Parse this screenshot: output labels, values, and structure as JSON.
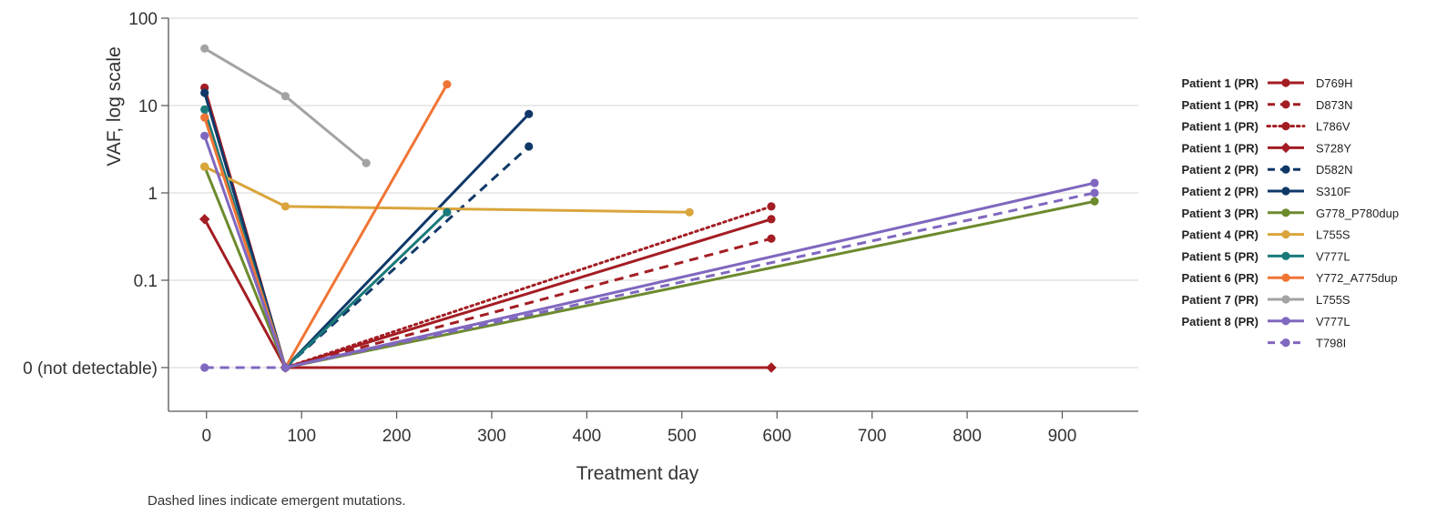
{
  "chart_data": {
    "type": "line",
    "xlabel": "Treatment day",
    "ylabel": "VAF, log scale",
    "xlim": [
      -40,
      980
    ],
    "x_ticks": [
      0,
      100,
      200,
      300,
      400,
      500,
      600,
      700,
      800,
      900
    ],
    "y_scale": "log",
    "y_ticks": [
      {
        "value": 100,
        "label": "100"
      },
      {
        "value": 10,
        "label": "10"
      },
      {
        "value": 1,
        "label": "1"
      },
      {
        "value": 0.1,
        "label": "0.1"
      },
      {
        "value": 0,
        "label": "0 (not detectable)"
      }
    ],
    "grid": "horizontal",
    "legend_position": "right",
    "series": [
      {
        "patient": "Patient 1 (PR)",
        "name": "D769H",
        "color": "#a31d23",
        "dash": "solid",
        "marker": "circle",
        "points": [
          [
            -2,
            16
          ],
          [
            83,
            0
          ],
          [
            594,
            0.5
          ]
        ]
      },
      {
        "patient": "Patient 1 (PR)",
        "name": "D873N",
        "color": "#a31d23",
        "dash": "dashed",
        "marker": "circle",
        "points": [
          [
            83,
            0
          ],
          [
            594,
            0.3
          ]
        ]
      },
      {
        "patient": "Patient 1 (PR)",
        "name": "L786V",
        "color": "#a31d23",
        "dash": "dotted",
        "marker": "circle",
        "points": [
          [
            83,
            0
          ],
          [
            594,
            0.7
          ]
        ]
      },
      {
        "patient": "Patient 1 (PR)",
        "name": "S728Y",
        "color": "#a31d23",
        "dash": "solid",
        "marker": "diamond",
        "points": [
          [
            -2,
            0.5
          ],
          [
            83,
            0
          ],
          [
            594,
            0
          ]
        ]
      },
      {
        "patient": "Patient 2 (PR)",
        "name": "D582N",
        "color": "#0f3868",
        "dash": "dashed",
        "marker": "circle",
        "points": [
          [
            83,
            0
          ],
          [
            339,
            3.4
          ]
        ]
      },
      {
        "patient": "Patient 2 (PR)",
        "name": "S310F",
        "color": "#0f3868",
        "dash": "solid",
        "marker": "circle",
        "points": [
          [
            -2,
            14
          ],
          [
            83,
            0
          ],
          [
            339,
            8
          ]
        ]
      },
      {
        "patient": "Patient 3 (PR)",
        "name": "G778_P780dup",
        "color": "#6c8a2e",
        "dash": "solid",
        "marker": "circle",
        "points": [
          [
            -2,
            2
          ],
          [
            83,
            0
          ],
          [
            934,
            0.8
          ]
        ]
      },
      {
        "patient": "Patient 4 (PR)",
        "name": "L755S",
        "color": "#d9a53c",
        "dash": "solid",
        "marker": "circle",
        "points": [
          [
            -2,
            2
          ],
          [
            83,
            0.7
          ],
          [
            508,
            0.6
          ]
        ]
      },
      {
        "patient": "Patient 5 (PR)",
        "name": "V777L",
        "color": "#1a7a7a",
        "dash": "solid",
        "marker": "circle",
        "points": [
          [
            -2,
            9
          ],
          [
            83,
            0
          ],
          [
            253,
            0.6
          ]
        ]
      },
      {
        "patient": "Patient 6 (PR)",
        "name": "Y772_A775dup",
        "color": "#f07535",
        "dash": "solid",
        "marker": "circle",
        "points": [
          [
            -2,
            7.3
          ],
          [
            83,
            0
          ],
          [
            253,
            17.5
          ]
        ]
      },
      {
        "patient": "Patient 7 (PR)",
        "name": "L755S",
        "color": "#a3a3a3",
        "dash": "solid",
        "marker": "circle",
        "points": [
          [
            -2,
            45
          ],
          [
            83,
            12.8
          ],
          [
            168,
            2.2
          ]
        ]
      },
      {
        "patient": "Patient 8 (PR)",
        "name": "V777L",
        "color": "#8067bf",
        "dash": "solid",
        "marker": "circle",
        "points": [
          [
            -2,
            4.5
          ],
          [
            83,
            0
          ],
          [
            934,
            1.3
          ]
        ]
      },
      {
        "patient": "",
        "name": "T798I",
        "color": "#8067bf",
        "dash": "dashed",
        "marker": "circle",
        "points": [
          [
            -2,
            0
          ],
          [
            83,
            0
          ],
          [
            934,
            1.0
          ]
        ]
      }
    ],
    "footnote": "Dashed lines indicate emergent mutations."
  }
}
